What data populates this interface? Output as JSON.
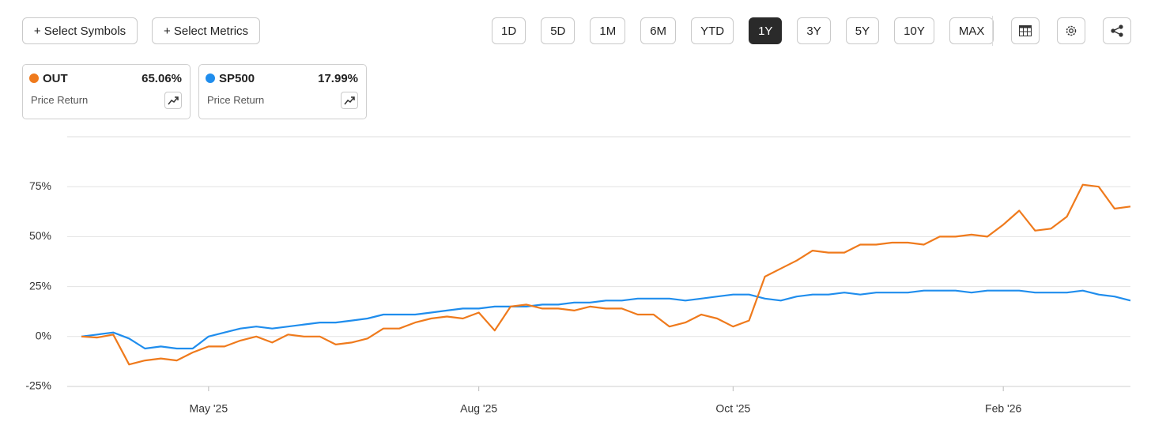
{
  "toolbar": {
    "buttons": [
      "+ Select Symbols",
      "+ Select Metrics"
    ],
    "ranges": [
      "1D",
      "5D",
      "1M",
      "6M",
      "YTD",
      "1Y",
      "3Y",
      "5Y",
      "10Y",
      "MAX"
    ],
    "active_range": "1Y"
  },
  "chart_data": {
    "type": "line",
    "categories": [
      null,
      null,
      null,
      null,
      null,
      null,
      null,
      null,
      "May '25",
      null,
      null,
      null,
      null,
      null,
      null,
      null,
      null,
      null,
      null,
      null,
      null,
      null,
      null,
      null,
      null,
      "Aug '25",
      null,
      null,
      null,
      null,
      null,
      null,
      null,
      null,
      null,
      null,
      null,
      null,
      null,
      null,
      null,
      "Oct '25",
      null,
      null,
      null,
      null,
      null,
      null,
      null,
      null,
      null,
      null,
      null,
      null,
      null,
      null,
      null,
      null,
      "Feb '26",
      null,
      null,
      null,
      null,
      null,
      null,
      null,
      null
    ],
    "series": [
      {
        "name": "OUT",
        "color": "#ef7a1c",
        "return": "65.06%",
        "metric": "Price Return",
        "values": [
          0,
          -0.5,
          1,
          -14,
          -12,
          -11,
          -12,
          -8,
          -5,
          -5,
          -2,
          0,
          -3,
          1,
          0,
          0,
          -4,
          -3,
          -1,
          4,
          4,
          7,
          9,
          10,
          9,
          12,
          3,
          15,
          16,
          14,
          14,
          13,
          15,
          14,
          14,
          11,
          11,
          5,
          7,
          11,
          9,
          5,
          8,
          30,
          34,
          38,
          43,
          42,
          42,
          46,
          46,
          47,
          47,
          46,
          50,
          50,
          51,
          50,
          56,
          63,
          53,
          54,
          60,
          76,
          75,
          64,
          65.06
        ]
      },
      {
        "name": "SP500",
        "color": "#1f8ded",
        "return": "17.99%",
        "metric": "Price Return",
        "values": [
          0,
          1,
          2,
          -1,
          -6,
          -5,
          -6,
          -6,
          0,
          2,
          4,
          5,
          4,
          5,
          6,
          7,
          7,
          8,
          9,
          11,
          11,
          11,
          12,
          13,
          14,
          14,
          15,
          15,
          15,
          16,
          16,
          17,
          17,
          18,
          18,
          19,
          19,
          19,
          18,
          19,
          20,
          21,
          21,
          19,
          18,
          20,
          21,
          21,
          22,
          21,
          22,
          22,
          22,
          23,
          23,
          23,
          22,
          23,
          23,
          23,
          22,
          22,
          22,
          23,
          21,
          20,
          17.99
        ]
      }
    ],
    "ylim": [
      -25,
      100
    ],
    "yticks": [
      {
        "value": -25,
        "label": "-25%"
      },
      {
        "value": 0,
        "label": "0%"
      },
      {
        "value": 25,
        "label": "25%"
      },
      {
        "value": 50,
        "label": "50%"
      },
      {
        "value": 75,
        "label": "75%"
      }
    ],
    "grid": true
  }
}
